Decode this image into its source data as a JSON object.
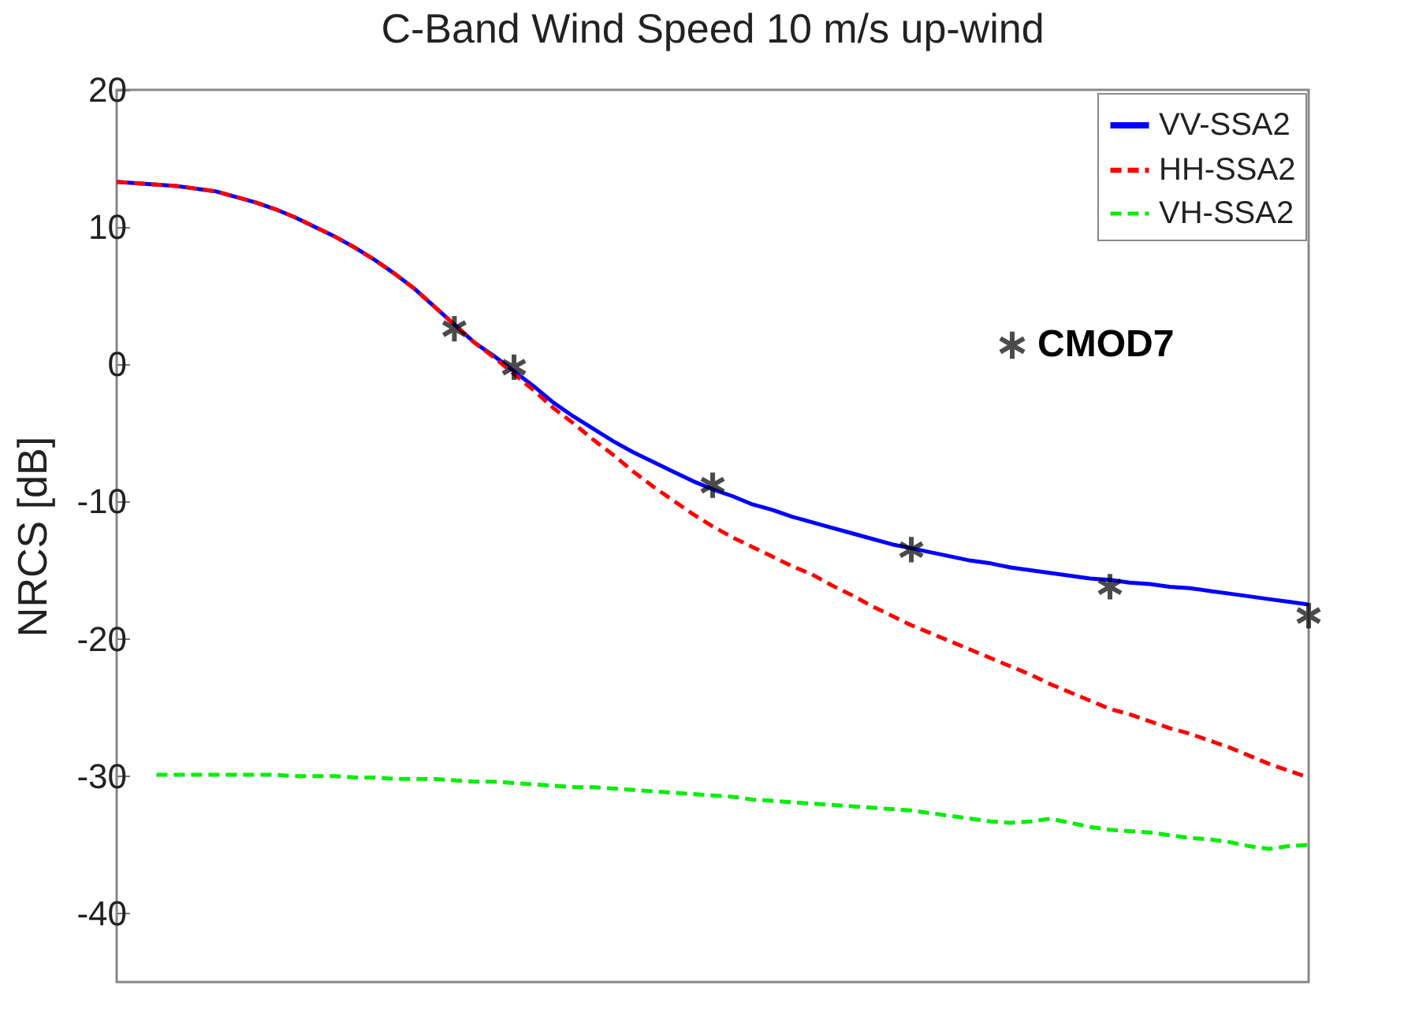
{
  "chart_data": {
    "type": "line",
    "title": "C-Band Wind Speed 10 m/s up-wind",
    "ylabel": "NRCS [dB]",
    "categories": [
      null,
      null,
      null,
      null,
      null,
      null,
      null,
      null,
      null,
      null,
      null,
      null,
      null,
      null,
      null,
      null,
      null,
      null,
      null,
      null,
      null,
      null,
      null,
      null,
      null,
      null,
      null,
      null,
      null,
      null,
      null,
      null,
      null,
      null,
      null,
      null,
      null,
      null,
      null,
      null,
      null,
      null,
      null,
      null,
      null,
      null,
      null,
      null,
      null,
      null,
      null,
      null,
      null,
      null,
      null,
      null,
      null,
      null,
      null,
      null,
      null
    ],
    "ylim": [
      -45,
      20
    ],
    "yticks": [
      -40,
      -30,
      -20,
      -10,
      0,
      10,
      20
    ],
    "tick_labels": "y",
    "grid": false,
    "legend": "top right",
    "series": [
      {
        "name": "VV-SSA2",
        "color": "#0000ff",
        "line_style": "solid",
        "values": [
          13.3,
          13.2,
          13.1,
          13.0,
          12.8,
          12.6,
          12.2,
          11.8,
          11.3,
          10.7,
          10.0,
          9.3,
          8.5,
          7.6,
          6.6,
          5.5,
          4.2,
          2.9,
          1.6,
          0.6,
          -0.5,
          -1.6,
          -2.8,
          -3.8,
          -4.7,
          -5.6,
          -6.4,
          -7.1,
          -7.8,
          -8.5,
          -9.1,
          -9.6,
          -10.2,
          -10.6,
          -11.1,
          -11.5,
          -11.9,
          -12.3,
          -12.7,
          -13.1,
          -13.4,
          -13.7,
          -14.0,
          -14.3,
          -14.5,
          -14.8,
          -15.0,
          -15.2,
          -15.4,
          -15.6,
          -15.7,
          -15.9,
          -16.0,
          -16.2,
          -16.3,
          -16.5,
          -16.7,
          -16.9,
          -17.1,
          -17.3,
          -17.5
        ]
      },
      {
        "name": "HH-SSA2",
        "color": "#ff0000",
        "line_style": "dashed",
        "values": [
          13.3,
          13.2,
          13.1,
          13.0,
          12.8,
          12.6,
          12.2,
          11.8,
          11.3,
          10.7,
          10.0,
          9.3,
          8.5,
          7.6,
          6.6,
          5.5,
          4.2,
          2.9,
          1.6,
          0.5,
          -0.7,
          -1.9,
          -3.2,
          -4.3,
          -5.5,
          -6.6,
          -7.8,
          -8.9,
          -9.9,
          -10.9,
          -11.8,
          -12.6,
          -13.3,
          -14.0,
          -14.7,
          -15.3,
          -16.1,
          -16.8,
          -17.6,
          -18.3,
          -19.0,
          -19.6,
          -20.2,
          -20.8,
          -21.4,
          -22.0,
          -22.6,
          -23.3,
          -23.9,
          -24.5,
          -25.1,
          -25.5,
          -26.0,
          -26.5,
          -26.9,
          -27.4,
          -27.9,
          -28.5,
          -29.1,
          -29.6,
          -30.1
        ]
      },
      {
        "name": "VH-SSA2",
        "color": "#00ee00",
        "line_style": "dashed",
        "values": [
          null,
          null,
          -29.9,
          -29.9,
          -29.9,
          -29.9,
          -29.9,
          -29.9,
          -29.9,
          -30.0,
          -30.0,
          -30.0,
          -30.1,
          -30.1,
          -30.2,
          -30.2,
          -30.2,
          -30.3,
          -30.4,
          -30.4,
          -30.5,
          -30.6,
          -30.7,
          -30.8,
          -30.8,
          -30.9,
          -31.0,
          -31.1,
          -31.2,
          -31.3,
          -31.4,
          -31.5,
          -31.7,
          -31.8,
          -31.9,
          -32.0,
          -32.1,
          -32.2,
          -32.3,
          -32.4,
          -32.5,
          -32.7,
          -32.9,
          -33.1,
          -33.3,
          -33.4,
          -33.3,
          -33.1,
          -33.4,
          -33.7,
          -33.9,
          -34.0,
          -34.1,
          -34.3,
          -34.5,
          -34.6,
          -34.8,
          -35.1,
          -35.3,
          -35.1,
          -35.0
        ]
      },
      {
        "name": "CMOD7",
        "type": "scatter",
        "marker": "cross",
        "color": "#000000",
        "values": [
          null,
          null,
          null,
          null,
          null,
          null,
          null,
          null,
          null,
          null,
          null,
          null,
          null,
          null,
          null,
          null,
          null,
          2.6,
          null,
          null,
          -0.2,
          null,
          null,
          null,
          null,
          null,
          null,
          null,
          null,
          null,
          -8.8,
          null,
          null,
          null,
          null,
          null,
          null,
          null,
          null,
          null,
          -13.5,
          null,
          null,
          null,
          null,
          null,
          null,
          null,
          null,
          null,
          -16.2,
          null,
          null,
          null,
          null,
          null,
          null,
          null,
          null,
          null,
          -18.3
        ]
      }
    ]
  }
}
